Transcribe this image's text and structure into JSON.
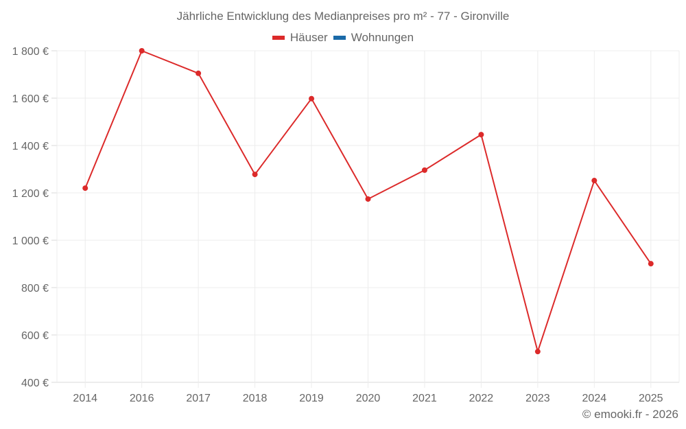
{
  "chart_data": {
    "type": "line",
    "title": "Jährliche Entwicklung des Medianpreises pro m² - 77 - Gironville",
    "xlabel": "",
    "ylabel": "",
    "categories": [
      "2014",
      "2016",
      "2017",
      "2018",
      "2019",
      "2020",
      "2021",
      "2022",
      "2023",
      "2024",
      "2025"
    ],
    "series": [
      {
        "name": "Häuser",
        "color": "#dc2a2a",
        "values": [
          1220,
          1800,
          1705,
          1278,
          1598,
          1174,
          1296,
          1446,
          530,
          1252,
          901
        ]
      },
      {
        "name": "Wohnungen",
        "color": "#1a6aa8",
        "values": []
      }
    ],
    "ylim": [
      400,
      1800
    ],
    "yticks": [
      400,
      600,
      800,
      1000,
      1200,
      1400,
      1600,
      1800
    ],
    "ytick_labels": [
      "400 €",
      "600 €",
      "800 €",
      "1 000 €",
      "1 200 €",
      "1 400 €",
      "1 600 €",
      "1 800 €"
    ],
    "grid": true,
    "legend_position": "top"
  },
  "legend": {
    "items": [
      {
        "label": "Häuser",
        "color": "#dc2a2a"
      },
      {
        "label": "Wohnungen",
        "color": "#1a6aa8"
      }
    ]
  },
  "credit": "© emooki.fr - 2026"
}
